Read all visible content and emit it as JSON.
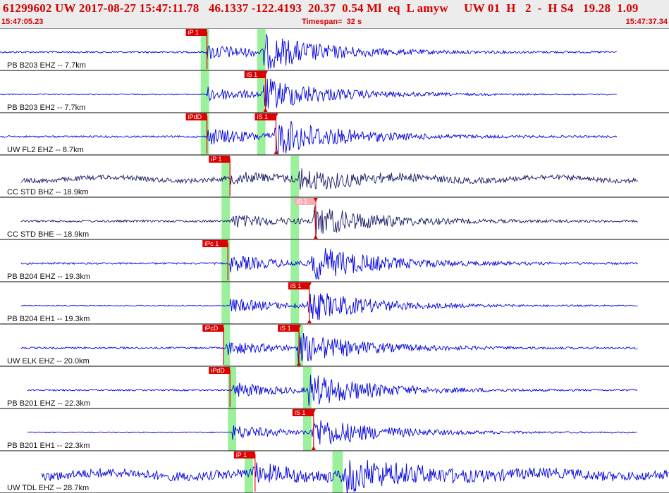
{
  "header": {
    "title": "61299602 UW 2017-08-27 15:47:11.78   46.1337 -122.4193  20.37  0.54 Ml  eq  L amyw     UW 01  H   2  -  H S4   19.28  1.09",
    "start_time": "15:47:05.23",
    "timespan": "Timespan=  32 s",
    "end_time": "15:47:37.34"
  },
  "colors": {
    "trace_blue": "#0000dd",
    "trace_dark": "#1a1a66",
    "pick_red": "#dd0000",
    "pick_pale": "#f4b0b0",
    "window_green": "#90ee90",
    "header_red": "#d40000"
  },
  "chart_data": {
    "type": "line",
    "title": "61299602 UW 2017-08-27 15:47:11.78   46.1337 -122.4193  20.37  0.54 Ml  eq  L amyw     UW 01  H   2  -  H S4   19.28  1.09",
    "xlabel": "",
    "ylabel": "",
    "xlim": [
      0,
      32
    ],
    "channels": [
      {
        "label": "PB B203 EHZ -- 7.7km",
        "color": "trace_blue",
        "t_start": 0.0,
        "t_end": 29.5,
        "amp_noise": 0.05,
        "amp_event": 0.85,
        "p_window": [
          9.6,
          10.0
        ],
        "s_window": [
          12.3,
          12.7
        ],
        "picks": [
          {
            "label": "iP 1",
            "time": 9.9,
            "style": "red",
            "tri": false
          }
        ],
        "p_onset": 9.9,
        "s_onset": 12.6
      },
      {
        "label": "PB B203 EH2 -- 7.7km",
        "color": "trace_blue",
        "t_start": 0.0,
        "t_end": 29.5,
        "amp_noise": 0.03,
        "amp_event": 0.8,
        "p_window": [
          9.6,
          10.0
        ],
        "s_window": [
          12.3,
          12.7
        ],
        "picks": [
          {
            "label": "iS 1",
            "time": 12.7,
            "style": "red",
            "tri": true
          }
        ],
        "p_onset": 9.9,
        "s_onset": 12.6
      },
      {
        "label": "UW FL2 EHZ -- 8.7km",
        "color": "trace_blue",
        "t_start": 0.0,
        "t_end": 29.5,
        "amp_noise": 0.05,
        "amp_event": 0.95,
        "p_window": [
          9.6,
          10.0
        ],
        "s_window": [
          12.3,
          12.7
        ],
        "picks": [
          {
            "label": "iPdD",
            "time": 9.9,
            "style": "red",
            "tri": false
          },
          {
            "label": "iS 1",
            "time": 13.2,
            "style": "red",
            "tri": true
          }
        ],
        "p_onset": 9.9,
        "s_onset": 13.1
      },
      {
        "label": "CC STD BHZ -- 18.9km",
        "color": "trace_dark",
        "t_start": 1.0,
        "t_end": 30.5,
        "amp_noise": 0.13,
        "amp_event": 0.5,
        "p_window": [
          10.6,
          11.0
        ],
        "s_window": [
          13.9,
          14.3
        ],
        "picks": [
          {
            "label": "iP 1",
            "time": 11.0,
            "style": "red",
            "tri": false
          }
        ],
        "p_onset": 11.0,
        "s_onset": 14.2
      },
      {
        "label": "CC STD BHE -- 18.9km",
        "color": "trace_dark",
        "t_start": 1.0,
        "t_end": 30.5,
        "amp_noise": 0.06,
        "amp_event": 0.75,
        "p_window": [
          10.6,
          11.0
        ],
        "s_window": [
          13.9,
          14.3
        ],
        "picks": [
          {
            "label": "iS 1",
            "time": 15.1,
            "style": "pale",
            "tri": true
          }
        ],
        "p_onset": 11.0,
        "s_onset": 15.0
      },
      {
        "label": "PB B204 EHZ -- 19.3km",
        "color": "trace_blue",
        "t_start": 1.0,
        "t_end": 30.5,
        "amp_noise": 0.05,
        "amp_event": 0.9,
        "p_window": [
          10.6,
          11.0
        ],
        "s_window": [
          13.9,
          14.3
        ],
        "picks": [
          {
            "label": "iPc 1",
            "time": 10.9,
            "style": "red",
            "tri": false
          }
        ],
        "p_onset": 11.0,
        "s_onset": 14.9
      },
      {
        "label": "PB B204 EH1 -- 19.3km",
        "color": "trace_blue",
        "t_start": 1.0,
        "t_end": 30.5,
        "amp_noise": 0.03,
        "amp_event": 0.8,
        "p_window": [
          10.6,
          11.0
        ],
        "s_window": [
          13.9,
          14.3
        ],
        "picks": [
          {
            "label": "iS 1",
            "time": 14.8,
            "style": "red",
            "tri": true
          }
        ],
        "p_onset": 11.0,
        "s_onset": 14.7
      },
      {
        "label": "UW ELK EHZ -- 20.0km",
        "color": "trace_blue",
        "t_start": 1.0,
        "t_end": 30.5,
        "amp_noise": 0.05,
        "amp_event": 0.75,
        "p_window": [
          10.7,
          11.0
        ],
        "s_window": [
          14.1,
          14.5
        ],
        "picks": [
          {
            "label": "iPcD",
            "time": 10.7,
            "style": "red",
            "tri": false
          },
          {
            "label": "iS 1",
            "time": 14.3,
            "style": "red",
            "tri": true
          }
        ],
        "p_onset": 10.8,
        "s_onset": 14.2
      },
      {
        "label": "PB B201 EHZ -- 22.3km",
        "color": "trace_blue",
        "t_start": 1.3,
        "t_end": 30.5,
        "amp_noise": 0.04,
        "amp_event": 0.85,
        "p_window": [
          10.9,
          11.3
        ],
        "s_window": [
          14.5,
          14.9
        ],
        "picks": [
          {
            "label": "iPdD",
            "time": 11.0,
            "style": "red",
            "tri": false
          }
        ],
        "p_onset": 11.1,
        "s_onset": 14.7
      },
      {
        "label": "PB B201 EH1 -- 22.3km",
        "color": "trace_blue",
        "t_start": 1.3,
        "t_end": 30.5,
        "amp_noise": 0.03,
        "amp_event": 0.8,
        "p_window": [
          10.9,
          11.3
        ],
        "s_window": [
          14.5,
          14.9
        ],
        "picks": [
          {
            "label": "iS 1",
            "time": 15.0,
            "style": "red",
            "tri": true
          }
        ],
        "p_onset": 11.1,
        "s_onset": 14.9
      },
      {
        "label": "UW TDL EHZ -- 28.7km",
        "color": "trace_blue",
        "t_start": 2.0,
        "t_end": 32.0,
        "amp_noise": 0.25,
        "amp_event": 0.75,
        "p_window": [
          11.7,
          12.1
        ],
        "s_window": [
          15.9,
          16.4
        ],
        "picks": [
          {
            "label": "iP 1",
            "time": 12.2,
            "style": "red",
            "tri": false
          }
        ],
        "p_onset": 12.1,
        "s_onset": 16.5
      }
    ]
  }
}
